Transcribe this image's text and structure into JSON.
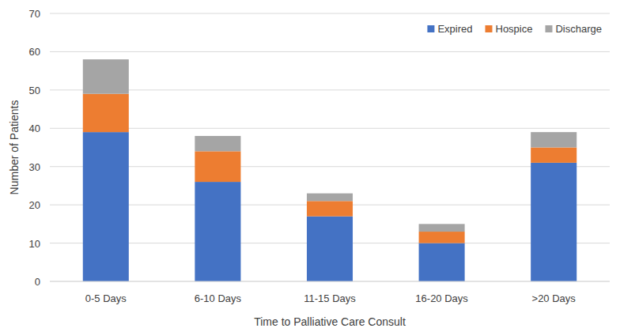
{
  "chart_data": {
    "type": "bar",
    "stacked": true,
    "grid": true,
    "legend": "top-right",
    "x_label": "Time to Palliative Care Consult",
    "y_label": "Number of Patients",
    "categories": [
      "0-5 Days",
      "6-10 Days",
      "11-15 Days",
      "16-20 Days",
      ">20 Days"
    ],
    "series": [
      {
        "name": "Expired",
        "color": "#4472c4",
        "values": [
          39,
          26,
          17,
          10,
          31
        ]
      },
      {
        "name": "Hospice",
        "color": "#ed7d31",
        "values": [
          10,
          8,
          4,
          3,
          4
        ]
      },
      {
        "name": "Discharge",
        "color": "#a5a5a5",
        "values": [
          9,
          4,
          2,
          2,
          4
        ]
      }
    ],
    "ylim": [
      0,
      70
    ],
    "yticks": [
      0,
      10,
      20,
      30,
      40,
      50,
      60,
      70
    ]
  }
}
